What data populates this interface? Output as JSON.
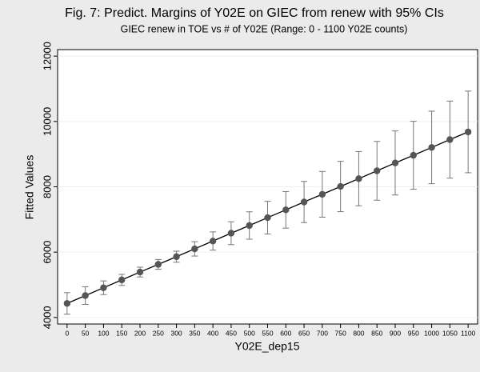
{
  "chart_data": {
    "type": "line",
    "title": "Fig. 7: Predict. Margins of Y02E on GIEC from renew with 95% CIs",
    "subtitle": "GIEC renew in TOE vs # of Y02E (Range: 0 - 1100 Y02E counts)",
    "xlabel": "Y02E_dep15",
    "ylabel": "Fitted Values",
    "x": [
      0,
      50,
      100,
      150,
      200,
      250,
      300,
      350,
      400,
      450,
      500,
      550,
      600,
      650,
      700,
      750,
      800,
      850,
      900,
      950,
      1000,
      1050,
      1100
    ],
    "series": [
      {
        "color": "#555555",
        "values": [
          4430,
          4670,
          4910,
          5150,
          5390,
          5625,
          5860,
          6100,
          6340,
          6580,
          6815,
          7055,
          7295,
          7535,
          7770,
          8010,
          8250,
          8490,
          8730,
          8965,
          9205,
          9445,
          9680
        ],
        "errors": [
          330,
          270,
          210,
          170,
          150,
          150,
          170,
          220,
          280,
          350,
          420,
          500,
          560,
          630,
          700,
          770,
          830,
          900,
          980,
          1040,
          1110,
          1180,
          1250
        ]
      }
    ],
    "xlim": [
      -26,
      1126
    ],
    "ylim": [
      3800,
      12200
    ],
    "xticks": [
      0,
      50,
      100,
      150,
      200,
      250,
      300,
      350,
      400,
      450,
      500,
      550,
      600,
      650,
      700,
      750,
      800,
      850,
      900,
      950,
      1000,
      1050,
      1100
    ],
    "yticks": [
      4000,
      6000,
      8000,
      10000,
      12000
    ],
    "grid": true
  }
}
